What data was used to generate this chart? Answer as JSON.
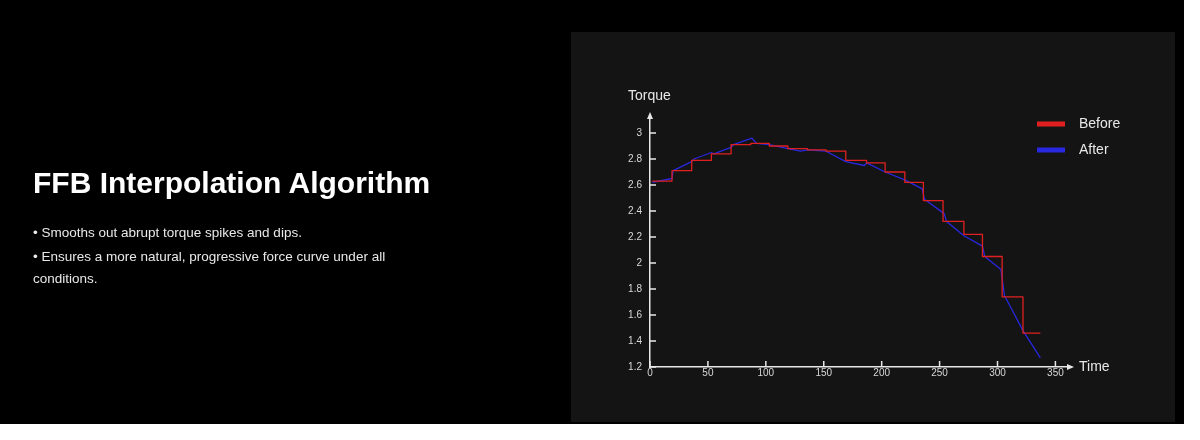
{
  "chart_data": {
    "type": "line",
    "title": "FFB Interpolation Algorithm",
    "annotations": [
      "• Smooths out abrupt torque spikes and dips.",
      "• Ensures a more natural, progressive force curve under all conditions."
    ],
    "xlabel": "Time",
    "ylabel": "Torque",
    "xlim": [
      0,
      360
    ],
    "xticks": [
      0,
      50,
      100,
      150,
      200,
      250,
      300,
      350
    ],
    "ylim": [
      1.2,
      3.1
    ],
    "yticks": [
      1.2,
      1.4,
      1.6,
      1.8,
      2,
      2.2,
      2.4,
      2.6,
      2.8,
      3
    ],
    "grid": false,
    "legend": "top right",
    "marker": "none",
    "line_style": "solid",
    "series": [
      {
        "name": "Before",
        "type": "step",
        "color": "#e02020",
        "x": [
          2,
          19,
          36,
          53,
          70,
          87,
          103,
          119,
          136,
          152,
          169,
          187,
          203,
          220,
          236,
          253,
          271,
          287,
          304,
          322,
          337
        ],
        "values": [
          2.63,
          2.71,
          2.79,
          2.84,
          2.91,
          2.92,
          2.9,
          2.88,
          2.87,
          2.86,
          2.79,
          2.77,
          2.7,
          2.62,
          2.48,
          2.32,
          2.22,
          2.05,
          1.74,
          1.46,
          1.46
        ]
      },
      {
        "name": "After",
        "type": "line",
        "color": "#2828e0",
        "x": [
          2,
          19,
          20,
          36,
          38,
          53,
          55,
          70,
          72,
          88,
          92,
          103,
          119,
          130,
          136,
          152,
          169,
          185,
          187,
          203,
          220,
          235,
          237,
          254,
          256,
          271,
          287,
          289,
          303,
          306,
          322,
          337
        ],
        "values": [
          2.62,
          2.65,
          2.71,
          2.78,
          2.8,
          2.85,
          2.84,
          2.89,
          2.91,
          2.96,
          2.92,
          2.91,
          2.88,
          2.86,
          2.87,
          2.86,
          2.78,
          2.75,
          2.77,
          2.7,
          2.64,
          2.57,
          2.49,
          2.38,
          2.32,
          2.21,
          2.13,
          2.05,
          1.95,
          1.75,
          1.48,
          1.27
        ]
      }
    ]
  }
}
